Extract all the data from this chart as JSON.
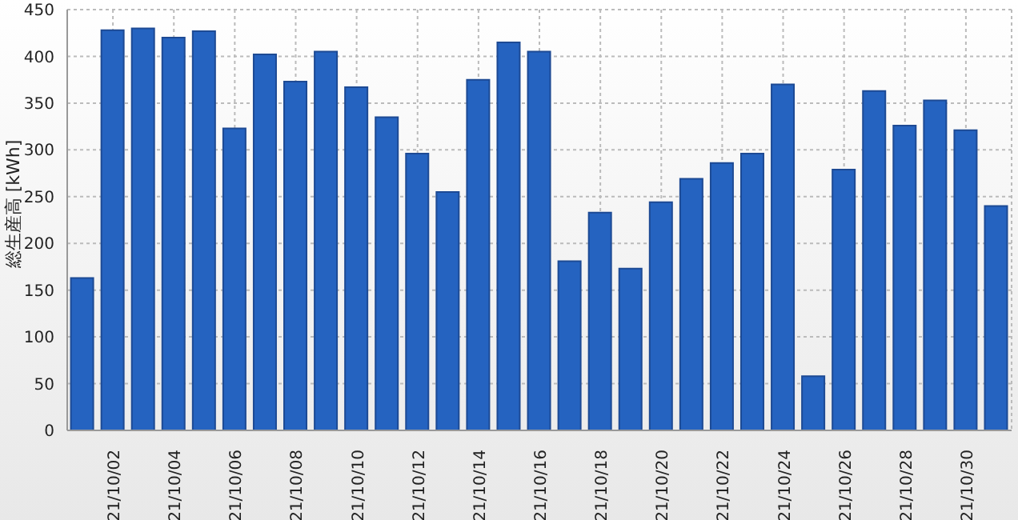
{
  "chart_data": {
    "type": "bar",
    "ylabel": "総生産高 [kWh]",
    "categories": [
      null,
      "21/10/02",
      null,
      "21/10/04",
      null,
      "21/10/06",
      null,
      "21/10/08",
      null,
      "21/10/10",
      null,
      "21/10/12",
      null,
      "21/10/14",
      null,
      "21/10/16",
      null,
      "21/10/18",
      null,
      "21/10/20",
      null,
      "21/10/22",
      null,
      "21/10/24",
      null,
      "21/10/26",
      null,
      "21/10/28",
      null,
      "21/10/30",
      null
    ],
    "values": [
      163,
      428,
      430,
      420,
      427,
      323,
      402,
      373,
      405,
      367,
      335,
      296,
      255,
      375,
      415,
      405,
      181,
      233,
      173,
      244,
      269,
      286,
      296,
      370,
      58,
      279,
      363,
      326,
      353,
      321,
      240
    ],
    "color": "#2563c0",
    "ylim": [
      0,
      450
    ],
    "yticks": [
      0,
      50,
      100,
      150,
      200,
      250,
      300,
      350,
      400,
      450
    ],
    "grid": true
  }
}
